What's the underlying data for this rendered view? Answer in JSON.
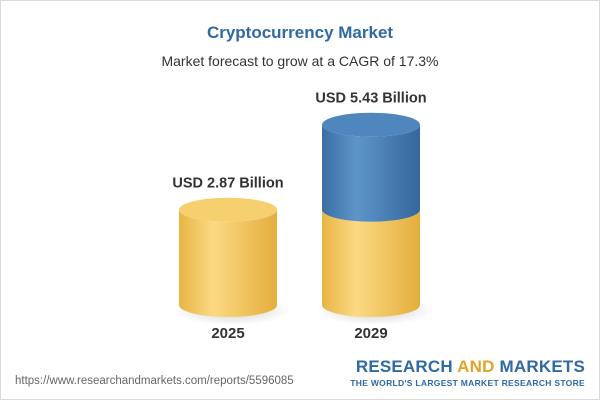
{
  "chart_data": {
    "type": "bar",
    "title": "Cryptocurrency Market",
    "subtitle": "Market forecast to grow at a CAGR of 17.3%",
    "categories": [
      "2025",
      "2029"
    ],
    "values": [
      2.87,
      5.43
    ],
    "unit": "USD Billion",
    "data_labels": [
      "USD 2.87 Billion",
      "USD 5.43 Billion"
    ],
    "series_colors": {
      "base": "#f2c55a",
      "growth": "#3f79b0"
    }
  },
  "footer": {
    "source_url": "https://www.researchandmarkets.com/reports/5596085",
    "brand_research": "RESEARCH",
    "brand_and": "AND",
    "brand_markets": "MARKETS",
    "brand_tagline": "THE WORLD'S LARGEST MARKET RESEARCH STORE"
  }
}
